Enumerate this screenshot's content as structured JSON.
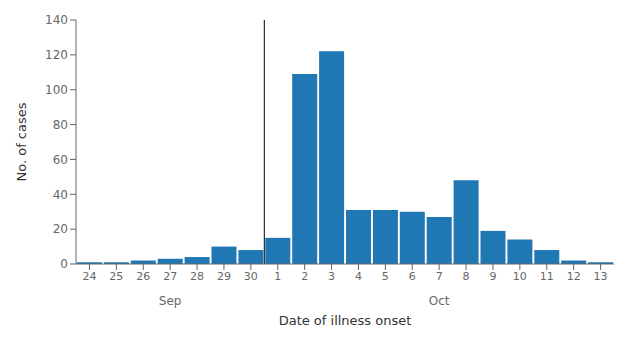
{
  "chart_data": {
    "type": "bar",
    "categories": [
      "24",
      "25",
      "26",
      "27",
      "28",
      "29",
      "30",
      "1",
      "2",
      "3",
      "4",
      "5",
      "6",
      "7",
      "8",
      "9",
      "10",
      "11",
      "12",
      "13"
    ],
    "values": [
      1,
      1,
      2,
      3,
      4,
      10,
      8,
      15,
      109,
      122,
      31,
      31,
      30,
      27,
      48,
      19,
      14,
      8,
      2,
      1
    ],
    "color": "#1F77B4",
    "xlabel": "Date of illness onset",
    "ylabel": "No. of cases",
    "ylim": [
      0,
      140
    ],
    "yticks": [
      0,
      20,
      40,
      60,
      80,
      100,
      120,
      140
    ],
    "grid": false,
    "annotations": [
      {
        "text": "Sep",
        "from": "24",
        "to": "30"
      },
      {
        "text": "Oct",
        "from": "1",
        "to": "13"
      }
    ]
  }
}
